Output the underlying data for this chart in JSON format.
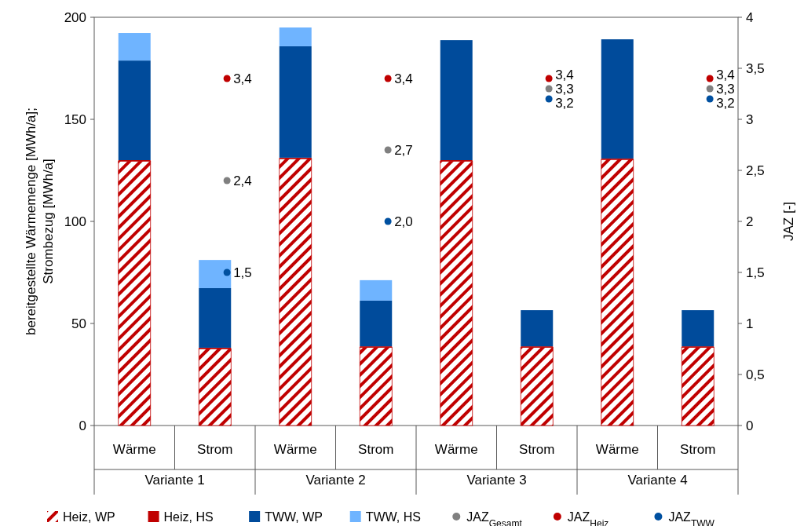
{
  "chart_data": {
    "type": "bar",
    "stacked": true,
    "categories": [
      "Wärme",
      "Strom",
      "Wärme",
      "Strom",
      "Wärme",
      "Strom",
      "Wärme",
      "Strom"
    ],
    "annotations": [
      "Variante 1",
      "Variante 2",
      "Variante 3",
      "Variante 4"
    ],
    "ylabel": "bereitgestellte Wärmemenge  [MWh/a];\nStrombezug  [MWh/a]",
    "y2label": "JAZ  [-]",
    "ylim": [
      0,
      200
    ],
    "yticks": [
      0,
      50,
      100,
      150,
      200
    ],
    "y2lim": [
      0,
      4
    ],
    "y2ticks": [
      0,
      {
        "value": 0.5,
        "label": "0,5"
      },
      1,
      {
        "value": 1.5,
        "label": "1,5"
      },
      2,
      {
        "value": 2.5,
        "label": "2,5"
      },
      3,
      {
        "value": 3.5,
        "label": "3,5"
      },
      4
    ],
    "legend": "bottom",
    "grid": false,
    "marker": "circle",
    "series": [
      {
        "name": "Heiz, WP",
        "color": "#c00000",
        "values": [
          129.5,
          37.6,
          130.7,
          38.3,
          129.5,
          38.3,
          130.3,
          38.3
        ]
      },
      {
        "name": "Heiz, HS",
        "color": "#c00000",
        "values": [
          0.5,
          0.5,
          0.5,
          0.5,
          0.5,
          0.5,
          0.5,
          0.5
        ]
      },
      {
        "name": "TWW, WP",
        "color": "#004b9b",
        "values": [
          48.8,
          29.2,
          54.6,
          22.4,
          58.8,
          17.7,
          58.4,
          17.7
        ]
      },
      {
        "name": "TWW, HS",
        "color": "#6fb4ff",
        "values": [
          13.5,
          13.8,
          9.2,
          10,
          null,
          null,
          null,
          null
        ]
      },
      {
        "name": "JAZ$_{Gesamt}$",
        "type": "scatter",
        "axis": "y2",
        "color": "#808080",
        "values": [
          null,
          2.4,
          null,
          2.7,
          null,
          3.3,
          null,
          3.3
        ],
        "value_labels": [
          null,
          "2,4",
          null,
          "2,7",
          null,
          "3,3",
          null,
          "3,3"
        ]
      },
      {
        "name": "JAZ$_{Heiz}$",
        "type": "scatter",
        "axis": "y2",
        "color": "#c00000",
        "values": [
          null,
          3.4,
          null,
          3.4,
          null,
          3.4,
          null,
          3.4
        ],
        "value_labels": [
          null,
          "3,4",
          null,
          "3,4",
          null,
          "3,4",
          null,
          "3,4"
        ]
      },
      {
        "name": "JAZ$_{TWW}$",
        "type": "scatter",
        "axis": "y2",
        "color": "#0050a0",
        "values": [
          null,
          1.5,
          null,
          2.0,
          null,
          3.2,
          null,
          3.2
        ],
        "value_labels": [
          null,
          "1,5",
          null,
          "2,0",
          null,
          "3,2",
          null,
          "3,2"
        ]
      }
    ]
  }
}
